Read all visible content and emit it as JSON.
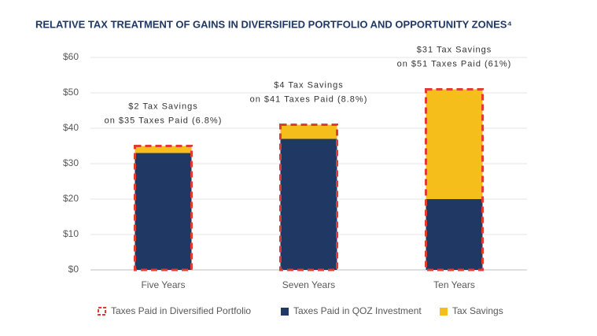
{
  "chart_data": {
    "type": "bar",
    "title": "RELATIVE TAX TREATMENT OF GAINS IN DIVERSIFIED PORTFOLIO AND OPPORTUNITY ZONES⁴",
    "categories": [
      "Five Years",
      "Seven Years",
      "Ten Years"
    ],
    "series": [
      {
        "name": "Taxes Paid in Diversified Portfolio",
        "color": "#e03c31",
        "outline": true,
        "values": [
          35,
          41,
          51
        ]
      },
      {
        "name": "Taxes Paid in QOZ Investment",
        "color": "#1f3864",
        "values": [
          33,
          37,
          20
        ]
      },
      {
        "name": "Tax Savings",
        "color": "#f6be1a",
        "values": [
          2,
          4,
          31
        ]
      }
    ],
    "annotations": [
      [
        "$2 Tax Savings",
        "on $35 Taxes Paid (6.8%)"
      ],
      [
        "$4 Tax Savings",
        "on $41 Taxes Paid (8.8%)"
      ],
      [
        "$31 Tax Savings",
        "on $51 Taxes Paid (61%)"
      ]
    ],
    "ylim": [
      0,
      60
    ],
    "yticks": [
      {
        "value": 0,
        "label": "$0"
      },
      {
        "value": 10,
        "label": "$10"
      },
      {
        "value": 20,
        "label": "$20"
      },
      {
        "value": 30,
        "label": "$30"
      },
      {
        "value": 40,
        "label": "$40"
      },
      {
        "value": 50,
        "label": "$50"
      },
      {
        "value": 60,
        "label": "$60"
      }
    ],
    "grid": true,
    "legend": "bottom"
  }
}
